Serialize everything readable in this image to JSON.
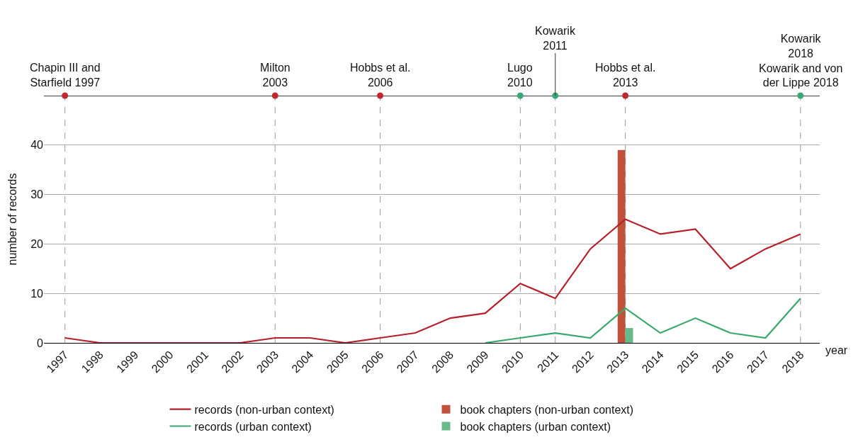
{
  "chart_data": {
    "type": "line",
    "xlabel": "year",
    "ylabel": "number of records",
    "x": [
      1997,
      1998,
      1999,
      2000,
      2001,
      2002,
      2003,
      2004,
      2005,
      2006,
      2007,
      2008,
      2009,
      2010,
      2011,
      2012,
      2013,
      2014,
      2015,
      2016,
      2017,
      2018
    ],
    "series": [
      {
        "name": "records (non-urban context)",
        "color": "#b5202a",
        "values": [
          1,
          0,
          0,
          0,
          0,
          0,
          1,
          1,
          0,
          1,
          2,
          5,
          6,
          12,
          9,
          19,
          25,
          22,
          23,
          15,
          19,
          22
        ]
      },
      {
        "name": "book chapters (non-urban context)",
        "type": "bar",
        "color": "#c0513a",
        "values": [
          null,
          null,
          null,
          null,
          null,
          null,
          null,
          null,
          null,
          null,
          null,
          null,
          null,
          null,
          null,
          null,
          39,
          null,
          null,
          null,
          null,
          null
        ]
      },
      {
        "name": "records (urban context)",
        "color": "#3aa86e",
        "values": [
          null,
          null,
          null,
          null,
          null,
          null,
          null,
          null,
          null,
          null,
          null,
          null,
          0,
          1,
          2,
          1,
          7,
          2,
          5,
          2,
          1,
          9
        ]
      },
      {
        "name": "book chapters (urban context)",
        "type": "bar",
        "color": "#6ab98a",
        "values": [
          null,
          null,
          null,
          null,
          null,
          null,
          null,
          null,
          null,
          null,
          null,
          null,
          null,
          null,
          null,
          null,
          3,
          null,
          null,
          null,
          null,
          null
        ]
      },
      {
        "type": "scatter",
        "marker": "circle",
        "x": [
          1997,
          2003,
          2006,
          2010,
          2011,
          2013,
          2018
        ],
        "values": [
          50,
          50,
          50,
          50,
          50,
          50,
          50
        ],
        "colors": [
          "#c0282d",
          "#c0282d",
          "#c0282d",
          "#3aa874",
          "#3aa874",
          "#c0282d",
          "#3aa874"
        ]
      }
    ],
    "annotations": [
      {
        "text": "Chapin III and\nStarfield 1997",
        "x": 1997,
        "y": 50
      },
      {
        "text": "Milton\n2003",
        "x": 2003,
        "y": 50
      },
      {
        "text": "Hobbs et al.\n2006",
        "x": 2006,
        "y": 50
      },
      {
        "text": "Lugo\n2010",
        "x": 2010,
        "y": 50
      },
      {
        "text": "Kowarik\n2011",
        "x": 2011,
        "y": 50
      },
      {
        "text": "Hobbs et al.\n2013",
        "x": 2013,
        "y": 50
      },
      {
        "text": "Kowarik\n2018\nKowarik and von\nder Lippe 2018",
        "x": 2018,
        "y": 50
      }
    ],
    "ref_lines": [
      {
        "axis": "y",
        "value": 50,
        "color": "#000000",
        "line_style": "solid"
      },
      {
        "axis": "x",
        "value": 1997,
        "color": "#999999",
        "line_style": "dashed"
      },
      {
        "axis": "x",
        "value": 2003,
        "color": "#999999",
        "line_style": "dashed"
      },
      {
        "axis": "x",
        "value": 2006,
        "color": "#999999",
        "line_style": "dashed"
      },
      {
        "axis": "x",
        "value": 2010,
        "color": "#999999",
        "line_style": "dashed"
      },
      {
        "axis": "x",
        "value": 2011,
        "color": "#999999",
        "line_style": "dashed"
      },
      {
        "axis": "x",
        "value": 2013,
        "color": "#999999",
        "line_style": "dashed"
      },
      {
        "axis": "x",
        "value": 2018,
        "color": "#999999",
        "line_style": "dashed"
      }
    ],
    "xlim": [
      1996.4,
      2018.55
    ],
    "xticks": [
      1997,
      1998,
      1999,
      2000,
      2001,
      2002,
      2003,
      2004,
      2005,
      2006,
      2007,
      2008,
      2009,
      2010,
      2011,
      2012,
      2013,
      2014,
      2015,
      2016,
      2017,
      2018
    ],
    "ylim": [
      0,
      50
    ],
    "yticks": [
      0,
      10,
      20,
      30,
      40,
      {
        "value": 50,
        "label": null
      }
    ],
    "grid": "y",
    "legend": "bottom",
    "line_style": "solid"
  }
}
